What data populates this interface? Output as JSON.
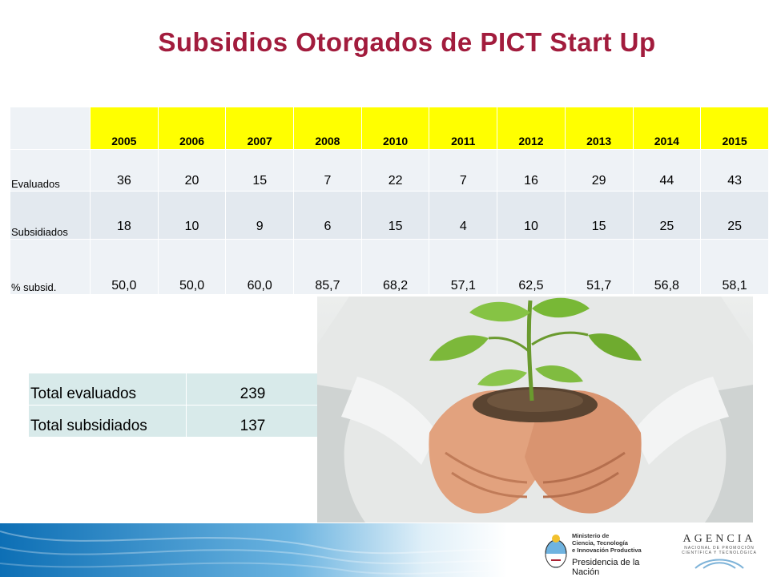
{
  "title": "Subsidios Otorgados de PICT Start Up",
  "table": {
    "years": [
      "2005",
      "2006",
      "2007",
      "2008",
      "2010",
      "2011",
      "2012",
      "2013",
      "2014",
      "2015"
    ],
    "rows": [
      {
        "label": "Evaluados",
        "values": [
          "36",
          "20",
          "15",
          "7",
          "22",
          "7",
          "16",
          "29",
          "44",
          "43"
        ]
      },
      {
        "label": "Subsidiados",
        "values": [
          "18",
          "10",
          "9",
          "6",
          "15",
          "4",
          "10",
          "15",
          "25",
          "25"
        ]
      },
      {
        "label": "% subsid.",
        "values": [
          "50,0",
          "50,0",
          "60,0",
          "85,7",
          "68,2",
          "57,1",
          "62,5",
          "51,7",
          "56,8",
          "58,1"
        ]
      }
    ]
  },
  "totals": [
    {
      "label": "Total evaluados",
      "value": "239"
    },
    {
      "label": "Total subsidiados",
      "value": "137"
    }
  ],
  "photo": {
    "icon": "seedling-in-hands-icon"
  },
  "footer": {
    "ministerio_lines": [
      "Ministerio de",
      "Ciencia, Tecnología",
      "e Innovación Productiva"
    ],
    "presidencia": "Presidencia de la Nación",
    "agencia_title": "AGENCIA",
    "agencia_sub_lines": [
      "NACIONAL DE PROMOCIÓN",
      "CIENTÍFICA Y TECNOLÓGICA"
    ]
  },
  "colors": {
    "title": "#a21c3d",
    "header_bg": "#ffff00",
    "row_bg_light": "#eef2f6",
    "row_bg_alt": "#e3e9ef",
    "totals_bg": "#d8eaea"
  }
}
